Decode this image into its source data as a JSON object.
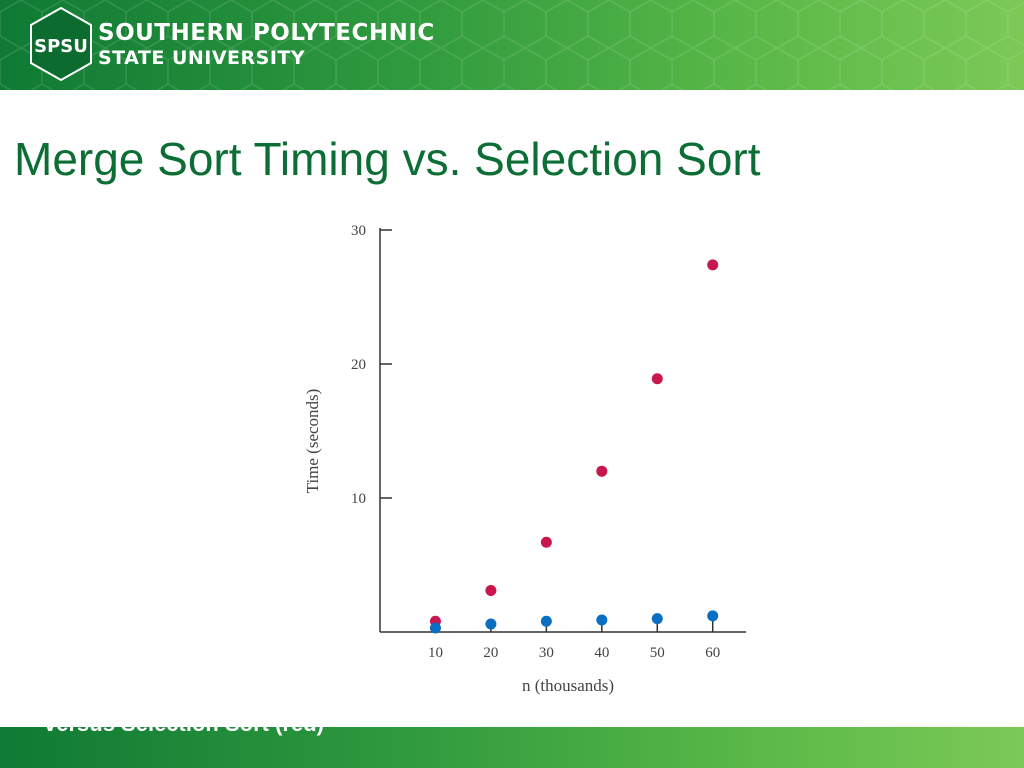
{
  "header": {
    "logo_text": "SPSU",
    "brand_line1": "SOUTHERN POLYTECHNIC",
    "brand_line2": "STATE UNIVERSITY"
  },
  "slide": {
    "title": "Merge Sort Timing vs. Selection Sort"
  },
  "footer": {
    "caption": "versus Selection Sort (red)"
  },
  "colors": {
    "brand_green_dark": "#0f7a34",
    "brand_green_light": "#7cc957",
    "title_green": "#0d6e35",
    "series_red": "#c8174d",
    "series_blue": "#0a6fc2"
  },
  "chart_data": {
    "type": "scatter",
    "title": "",
    "xlabel": "n (thousands)",
    "ylabel": "Time (seconds)",
    "x": [
      10,
      20,
      30,
      40,
      50,
      60
    ],
    "xlim": [
      0,
      66
    ],
    "ylim": [
      0,
      30
    ],
    "x_ticks": [
      10,
      20,
      30,
      40,
      50,
      60
    ],
    "y_ticks": [
      10,
      20,
      30
    ],
    "grid": false,
    "series": [
      {
        "color": "#c8174d",
        "values": [
          0.8,
          3.1,
          6.7,
          12.0,
          18.9,
          27.4
        ]
      },
      {
        "color": "#0a6fc2",
        "values": [
          0.3,
          0.6,
          0.8,
          0.9,
          1.0,
          1.2
        ]
      }
    ]
  }
}
